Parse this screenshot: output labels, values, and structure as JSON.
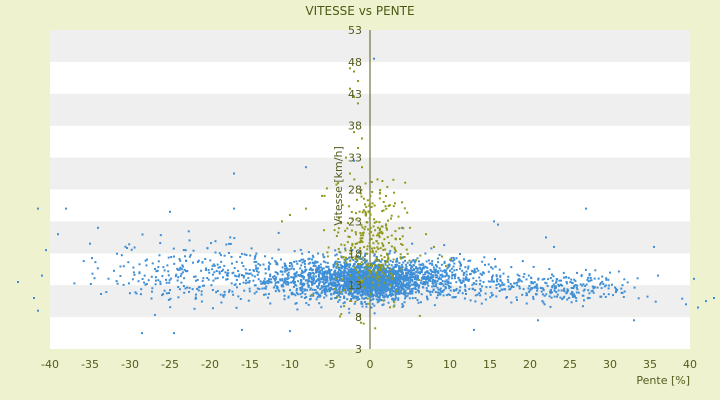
{
  "chart_data": {
    "type": "scatter",
    "title": "VITESSE vs PENTE",
    "xlabel": "Pente [%]",
    "ylabel": "Vitesse [km/h]",
    "xlim": [
      -40,
      40
    ],
    "ylim": [
      3,
      53
    ],
    "x_ticks": [
      -40,
      -35,
      -30,
      -25,
      -20,
      -15,
      -10,
      -5,
      0,
      5,
      10,
      15,
      20,
      25,
      30,
      35,
      40
    ],
    "y_ticks": [
      3,
      8,
      13,
      18,
      23,
      28,
      33,
      38,
      43,
      48,
      53
    ],
    "grid": true,
    "legend": "none",
    "colors": {
      "background": "#eef2cf",
      "band_light": "#ffffff",
      "band_dark": "#efefef",
      "axis": "#555a1e",
      "series_main": "#3f8fd6",
      "series_alt": "#8f9a1c"
    },
    "series": [
      {
        "color": "#3f8fd6",
        "clusters": [
          {
            "x_center": 0,
            "x_spread": 14,
            "y_center": 14,
            "y_spread": 1.6,
            "count": 1800
          },
          {
            "x_center": 0,
            "x_spread": 5,
            "y_center": 13.5,
            "y_spread": 1.4,
            "count": 900
          },
          {
            "x_center": -22,
            "x_spread": 10,
            "y_center": 15,
            "y_spread": 2.6,
            "count": 260
          },
          {
            "x_center": 24,
            "x_spread": 9,
            "y_center": 12.5,
            "y_spread": 1.2,
            "count": 260
          }
        ],
        "outliers": [
          [
            -44,
            13.5
          ],
          [
            -42,
            11
          ],
          [
            -41,
            14.5
          ],
          [
            -41.5,
            9
          ],
          [
            -40.5,
            18.5
          ],
          [
            -39,
            21
          ],
          [
            -38,
            25
          ],
          [
            -41.5,
            25
          ],
          [
            -34,
            22
          ],
          [
            -35,
            19.5
          ],
          [
            -28.5,
            5.5
          ],
          [
            -24.5,
            5.5
          ],
          [
            -24.5,
            17.5
          ],
          [
            -25,
            24.5
          ],
          [
            -17,
            30.5
          ],
          [
            -17,
            25
          ],
          [
            -16,
            6
          ],
          [
            -10,
            5.8
          ],
          [
            -8,
            31.5
          ],
          [
            -2,
            32.5
          ],
          [
            0.5,
            48.5
          ],
          [
            4,
            22
          ],
          [
            15.5,
            23
          ],
          [
            16,
            22.5
          ],
          [
            13,
            6
          ],
          [
            21,
            7.5
          ],
          [
            22,
            20.5
          ],
          [
            23,
            19
          ],
          [
            27,
            25
          ],
          [
            33,
            7.5
          ],
          [
            35.5,
            19
          ],
          [
            36,
            14.5
          ],
          [
            39.5,
            10
          ],
          [
            40.5,
            14
          ],
          [
            41,
            9.5
          ],
          [
            42,
            10.5
          ],
          [
            43,
            11
          ]
        ]
      },
      {
        "color": "#8f9a1c",
        "clusters": [
          {
            "x_center": 0,
            "x_spread": 4,
            "y_center": 19,
            "y_spread": 5,
            "count": 320
          }
        ],
        "outliers": [
          [
            -2.5,
            47
          ],
          [
            -2,
            46.5
          ],
          [
            -1.5,
            45
          ],
          [
            -2.5,
            43.8
          ],
          [
            -2,
            42.5
          ],
          [
            -1.5,
            41.5
          ],
          [
            -2,
            37
          ],
          [
            -1,
            36
          ],
          [
            -1.5,
            34.5
          ],
          [
            -3,
            33
          ],
          [
            -2.5,
            30.5
          ],
          [
            -1,
            31.5
          ],
          [
            -4,
            29
          ],
          [
            -6,
            27
          ],
          [
            -8,
            25
          ],
          [
            -10,
            24
          ],
          [
            -11,
            23
          ],
          [
            2,
            27
          ],
          [
            3,
            27.5
          ],
          [
            4,
            26
          ],
          [
            5,
            22
          ],
          [
            7,
            21
          ],
          [
            8,
            19
          ],
          [
            9,
            17.5
          ],
          [
            9.5,
            16
          ],
          [
            10,
            17
          ]
        ]
      }
    ]
  }
}
